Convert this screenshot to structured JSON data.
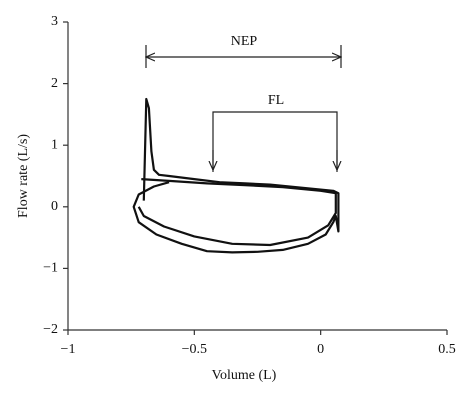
{
  "chart_data": {
    "type": "line",
    "x_label": "Volume (L)",
    "y_label": "Flow rate (L/s)",
    "annotations": [
      "NEP",
      "FL"
    ],
    "xlim": [
      -1,
      0.5
    ],
    "xticks": [
      {
        "value": -1,
        "label": "−1"
      },
      {
        "value": -0.5,
        "label": "−0.5"
      },
      0,
      0.5
    ],
    "ylim": [
      -2,
      3
    ],
    "yticks": [
      {
        "value": -2,
        "label": "−2"
      },
      {
        "value": -1,
        "label": "−1"
      },
      0,
      1,
      2,
      3
    ],
    "grid": false,
    "series": [
      {
        "color": "#111",
        "x": [
          -0.7,
          -0.69,
          -0.68,
          -0.67,
          -0.66,
          -0.64,
          -0.6,
          -0.5,
          -0.4,
          -0.3,
          -0.2,
          -0.1,
          0,
          0.05,
          0.07,
          0.07,
          0.06,
          0.05,
          0.02,
          -0.05,
          -0.15,
          -0.25,
          -0.35,
          -0.45,
          -0.55,
          -0.65,
          -0.72,
          -0.74,
          -0.72,
          -0.66,
          -0.6
        ],
        "values": [
          0.1,
          1.75,
          1.6,
          0.9,
          0.6,
          0.52,
          0.5,
          0.45,
          0.4,
          0.38,
          0.36,
          0.32,
          0.28,
          0.26,
          0.22,
          -0.4,
          -0.15,
          -0.25,
          -0.45,
          -0.6,
          -0.7,
          -0.73,
          -0.74,
          -0.72,
          -0.6,
          -0.45,
          -0.25,
          0.0,
          0.2,
          0.33,
          0.4
        ]
      },
      {
        "color": "#111",
        "x": [
          -0.71,
          -0.6,
          -0.45,
          -0.3,
          -0.15,
          0,
          0.06,
          0.06,
          0.03,
          -0.05,
          -0.2,
          -0.35,
          -0.5,
          -0.62,
          -0.7,
          -0.72
        ],
        "values": [
          0.45,
          0.42,
          0.38,
          0.35,
          0.32,
          0.26,
          0.22,
          -0.1,
          -0.3,
          -0.5,
          -0.62,
          -0.6,
          -0.48,
          -0.32,
          -0.15,
          0.0
        ]
      }
    ]
  }
}
